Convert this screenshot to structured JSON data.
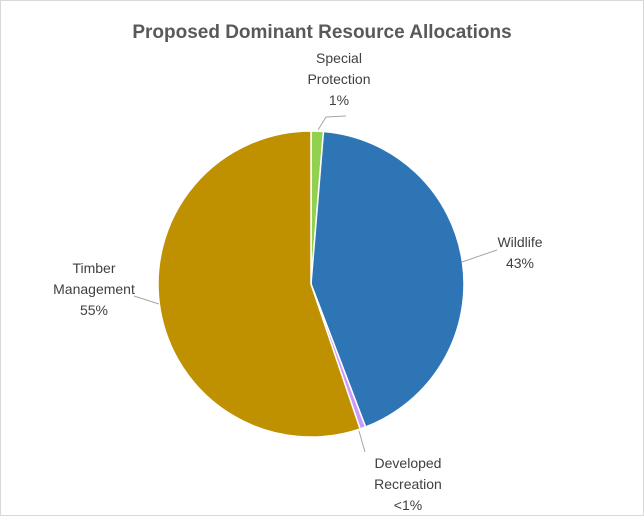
{
  "chart_data": {
    "type": "pie",
    "title": "Proposed Dominant Resource Allocations",
    "slices": [
      {
        "name": "Special Protection",
        "value": 1.3,
        "label_lines": [
          "Special",
          "Protection"
        ],
        "value_label": "1%",
        "color": "#92d050"
      },
      {
        "name": "Wildlife",
        "value": 42.9,
        "label_lines": [
          "Wildlife"
        ],
        "value_label": "43%",
        "color": "#2e75b6"
      },
      {
        "name": "Developed Recreation",
        "value": 0.6,
        "label_lines": [
          "Developed",
          "Recreation"
        ],
        "value_label": "<1%",
        "color": "#cc99ff"
      },
      {
        "name": "Timber Management",
        "value": 55.2,
        "label_lines": [
          "Timber",
          "Management"
        ],
        "value_label": "55%",
        "color": "#bf9000"
      }
    ],
    "legend": "none"
  }
}
